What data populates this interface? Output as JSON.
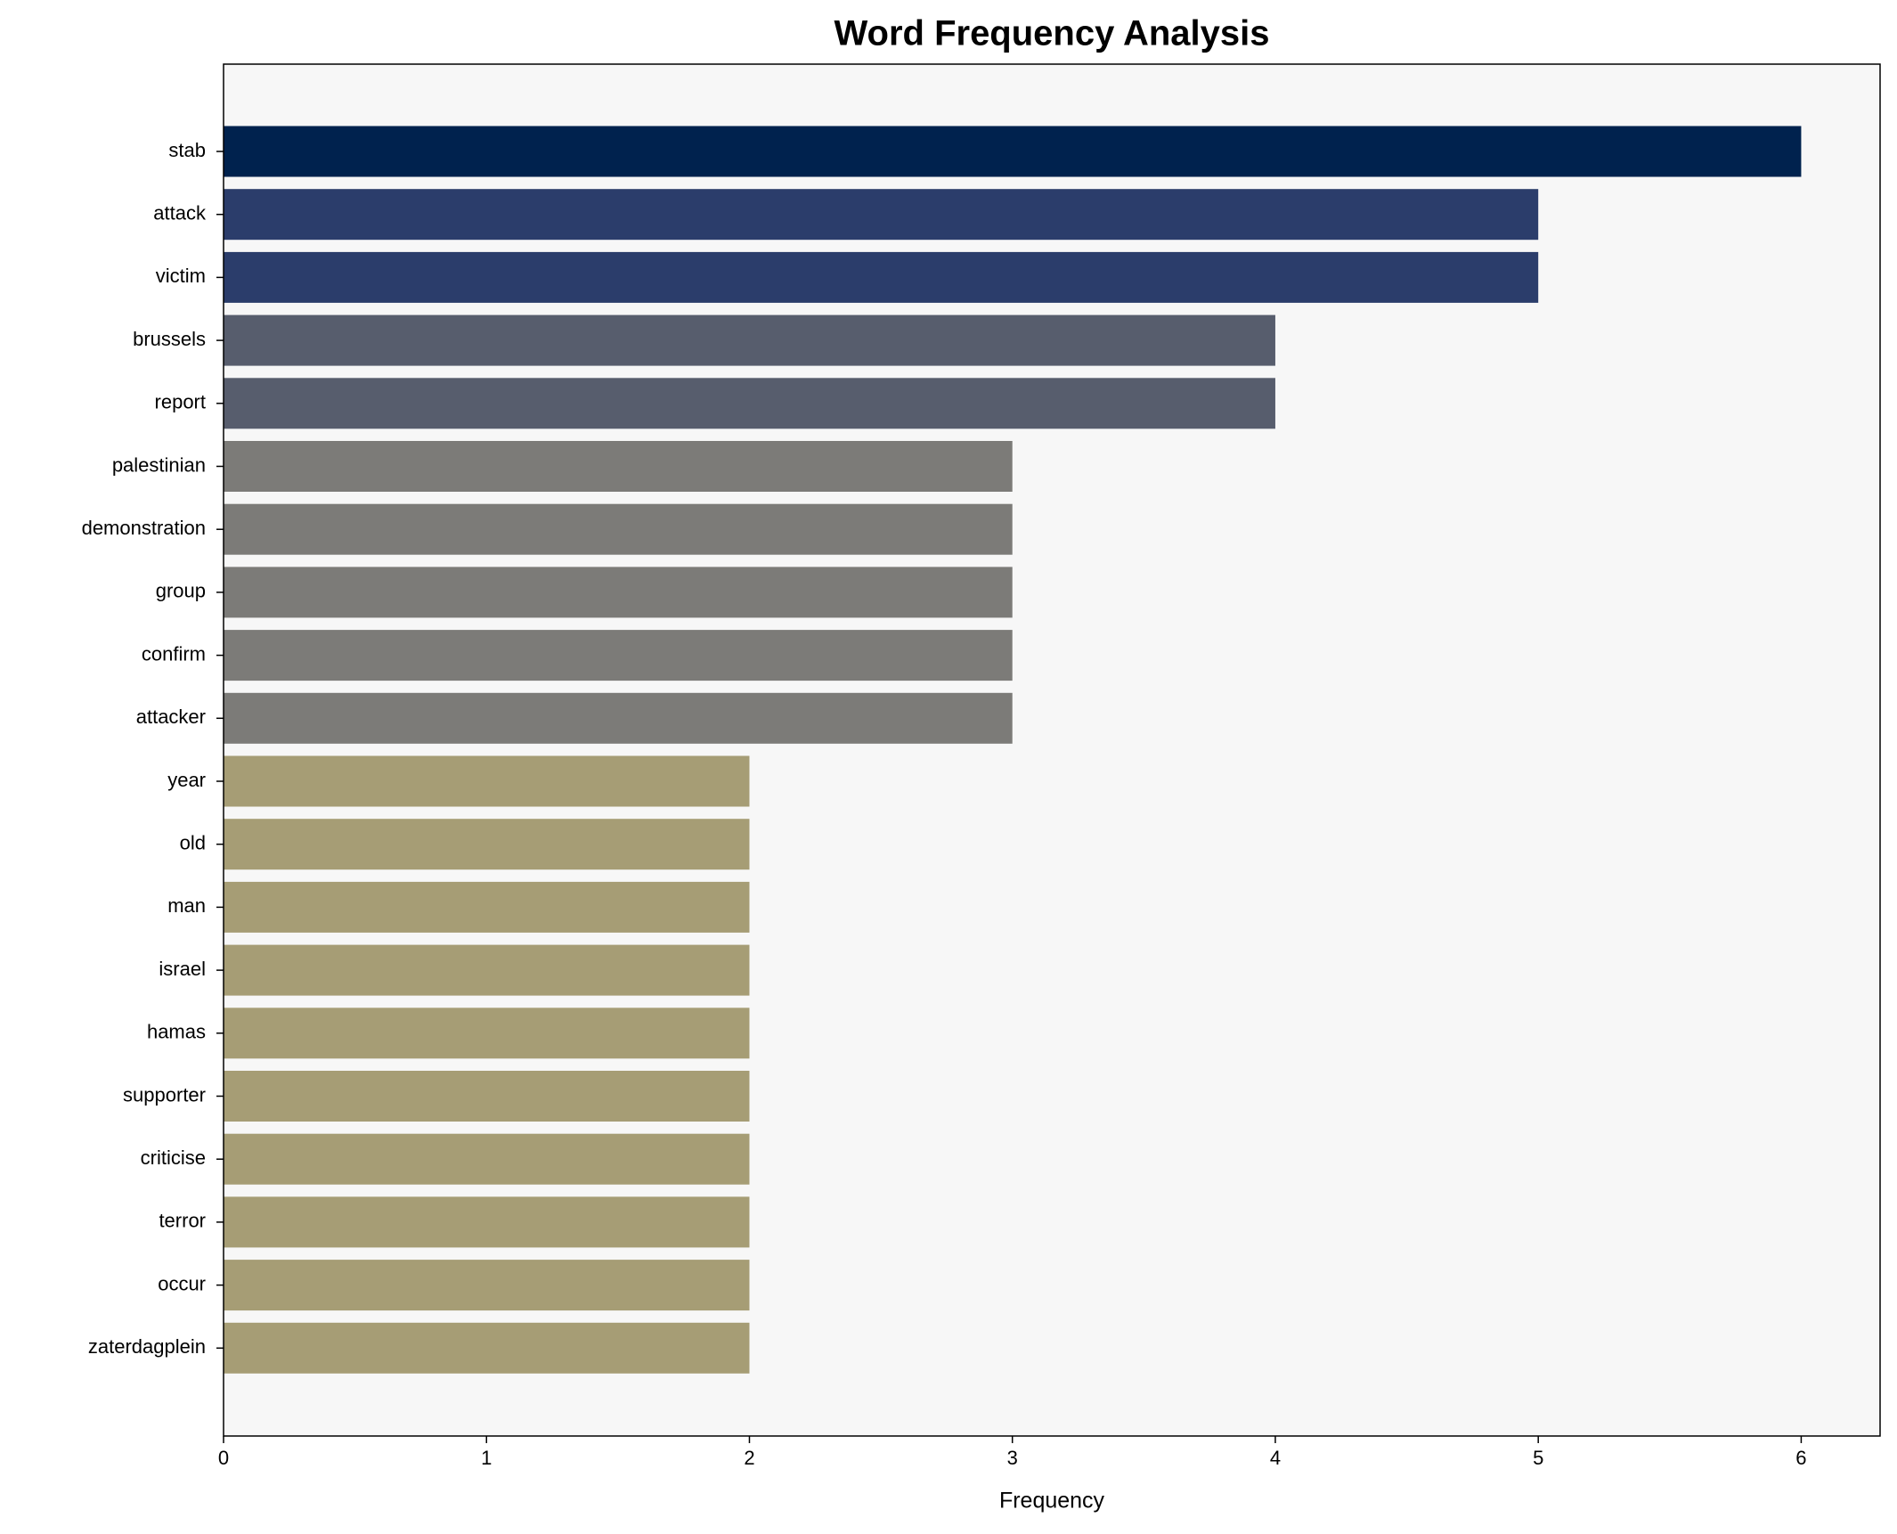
{
  "chart_data": {
    "type": "barh",
    "title": "Word Frequency Analysis",
    "x_label": "Frequency",
    "categories": [
      "stab",
      "attack",
      "victim",
      "brussels",
      "report",
      "palestinian",
      "demonstration",
      "group",
      "confirm",
      "attacker",
      "year",
      "old",
      "man",
      "israel",
      "hamas",
      "supporter",
      "criticise",
      "terror",
      "occur",
      "zaterdagplein"
    ],
    "values": [
      6,
      5,
      5,
      4,
      4,
      3,
      3,
      3,
      3,
      3,
      2,
      2,
      2,
      2,
      2,
      2,
      2,
      2,
      2,
      2
    ],
    "colors": [
      "#00224e",
      "#2b3d6b",
      "#2b3d6b",
      "#575d6d",
      "#575d6d",
      "#7c7b78",
      "#7c7b78",
      "#7c7b78",
      "#7c7b78",
      "#7c7b78",
      "#a69d75",
      "#a69d75",
      "#a69d75",
      "#a69d75",
      "#a69d75",
      "#a69d75",
      "#a69d75",
      "#a69d75",
      "#a69d75",
      "#a69d75"
    ],
    "xlim": [
      0,
      6.3
    ],
    "xticks": [
      0,
      1,
      2,
      3,
      4,
      5,
      6
    ],
    "grid": false
  }
}
